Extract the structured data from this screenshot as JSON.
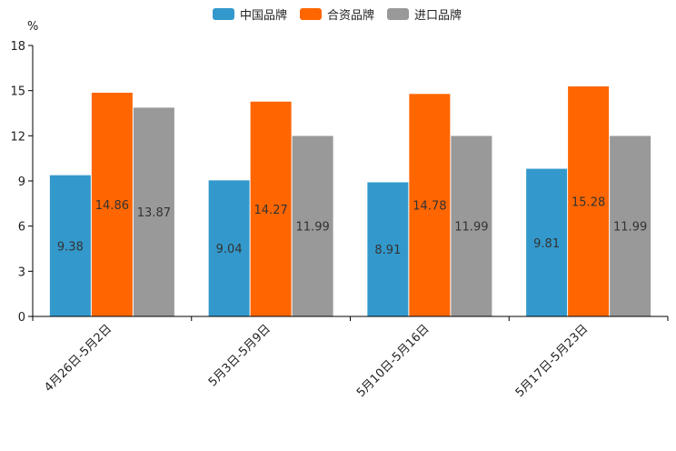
{
  "chart_data": {
    "type": "bar",
    "title": "",
    "xlabel": "",
    "ylabel": "%",
    "ylim": [
      0,
      18
    ],
    "yticks": [
      0,
      3,
      6,
      9,
      12,
      15,
      18
    ],
    "grid": false,
    "legend_position": "top-center",
    "categories": [
      "4月26日-5月2日",
      "5月3日-5月9日",
      "5月10日-5月16日",
      "5月17日-5月23日"
    ],
    "series": [
      {
        "name": "中国品牌",
        "color": "#3399cc",
        "values": [
          9.38,
          9.04,
          8.91,
          9.81
        ]
      },
      {
        "name": "合资品牌",
        "color": "#ff6600",
        "values": [
          14.86,
          14.27,
          14.78,
          15.28
        ]
      },
      {
        "name": "进口品牌",
        "color": "#999999",
        "values": [
          13.87,
          11.99,
          11.99,
          11.99
        ]
      }
    ]
  }
}
